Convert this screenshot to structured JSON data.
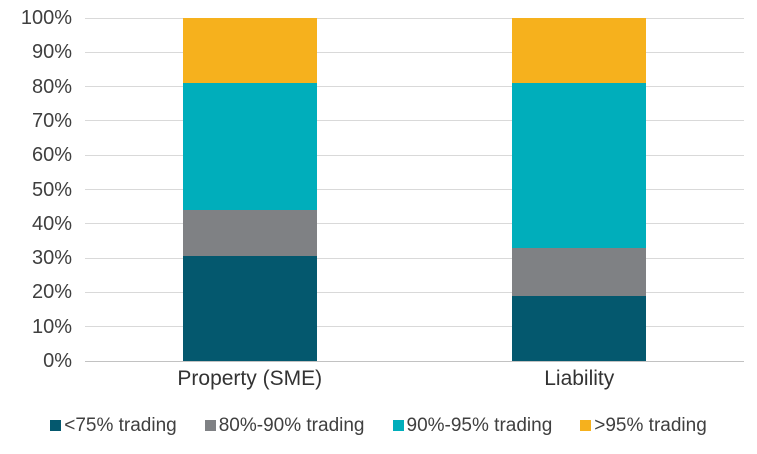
{
  "chart_data": {
    "type": "bar",
    "stacked": true,
    "title": "",
    "xlabel": "",
    "ylabel": "",
    "categories": [
      "Property (SME)",
      "Liability"
    ],
    "series": [
      {
        "name": "<75% trading",
        "color": "#04586e",
        "values": [
          30.5,
          19
        ]
      },
      {
        "name": "80%-90% trading",
        "color": "#7f8184",
        "values": [
          13.5,
          14
        ]
      },
      {
        "name": "90%-95% trading",
        "color": "#00aebb",
        "values": [
          37,
          48
        ]
      },
      {
        "name": ">95% trading",
        "color": "#f6b11d",
        "values": [
          19,
          19
        ]
      }
    ],
    "ylim": [
      0,
      100
    ],
    "yticks": [
      {
        "value": 0,
        "label": "0%"
      },
      {
        "value": 10,
        "label": "10%"
      },
      {
        "value": 20,
        "label": "20%"
      },
      {
        "value": 30,
        "label": "30%"
      },
      {
        "value": 40,
        "label": "40%"
      },
      {
        "value": 50,
        "label": "50%"
      },
      {
        "value": 60,
        "label": "60%"
      },
      {
        "value": 70,
        "label": "70%"
      },
      {
        "value": 80,
        "label": "80%"
      },
      {
        "value": 90,
        "label": "90%"
      },
      {
        "value": 100,
        "label": "100%"
      }
    ],
    "grid": true,
    "legend_position": "bottom"
  },
  "colors": {
    "gridline": "#d9d9d9",
    "axis_line": "#c2c2c2",
    "tick_text": "#3f3f3f",
    "category_text": "#333333",
    "legend_text": "#404040",
    "background": "#ffffff"
  }
}
